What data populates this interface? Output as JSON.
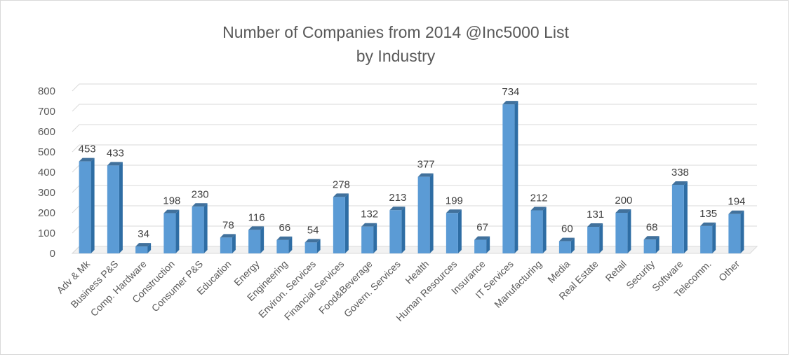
{
  "chart_data": {
    "type": "bar",
    "title": [
      "Number of Companies from 2014 @Inc5000 List",
      "by Industry"
    ],
    "categories": [
      "Adv & Mk",
      "Business P&S",
      "Comp. Hardware",
      "Construction",
      "Consumer P&S",
      "Education",
      "Energy",
      "Engineering",
      "Environ. Services",
      "Financial Services",
      "Food&Beverage",
      "Govern. Services",
      "Health",
      "Human Resources",
      "Insurance",
      "IT Services",
      "Manufacturing",
      "Media",
      "Real Estate",
      "Retail",
      "Security",
      "Software",
      "Telecomm.",
      "Other"
    ],
    "values": [
      453,
      433,
      34,
      198,
      230,
      78,
      116,
      66,
      54,
      278,
      132,
      213,
      377,
      199,
      67,
      734,
      212,
      60,
      131,
      200,
      68,
      338,
      135,
      194
    ],
    "xlabel": "",
    "ylabel": "",
    "ylim": [
      0,
      800
    ],
    "yticks": [
      0,
      100,
      200,
      300,
      400,
      500,
      600,
      700,
      800
    ],
    "grid": true,
    "legend": "none",
    "colors": {
      "bar_front": "#5b9bd5",
      "bar_side": "#2e6da4",
      "bar_top": "#41719c",
      "grid": "#d9d9d9",
      "text": "#595959"
    }
  }
}
